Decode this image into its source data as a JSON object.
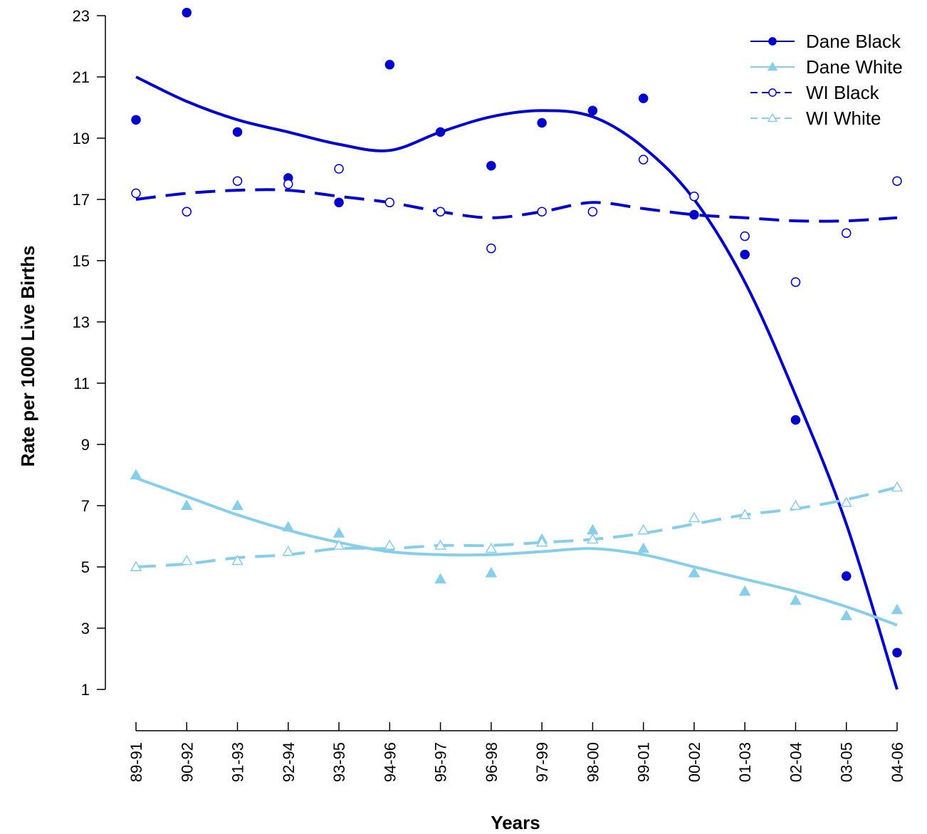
{
  "chart_data": {
    "type": "line",
    "xlabel": "Years",
    "ylabel": "Rate per 1000 Live Births",
    "ylim": [
      1,
      23
    ],
    "yticks": [
      1,
      3,
      5,
      7,
      9,
      11,
      13,
      15,
      17,
      19,
      21,
      23
    ],
    "categories": [
      "89-91",
      "90-92",
      "91-93",
      "92-94",
      "93-95",
      "94-96",
      "95-97",
      "96-98",
      "97-99",
      "98-00",
      "99-01",
      "00-02",
      "01-03",
      "02-04",
      "03-05",
      "04-06"
    ],
    "legend_position": "top-right",
    "series": [
      {
        "name": "Dane Black",
        "color": "#0000cd",
        "marker": "filled-circle",
        "line_style": "solid",
        "points": [
          19.6,
          23.1,
          19.2,
          17.7,
          16.9,
          21.4,
          19.2,
          18.1,
          19.5,
          19.9,
          20.3,
          16.5,
          15.2,
          9.8,
          4.7,
          2.2
        ],
        "trend": [
          21.0,
          20.2,
          19.6,
          19.2,
          18.8,
          18.6,
          19.2,
          19.7,
          19.9,
          19.7,
          18.7,
          17.0,
          14.3,
          10.6,
          6.4,
          1.0
        ]
      },
      {
        "name": "Dane White",
        "color": "#87ceeb",
        "marker": "filled-triangle",
        "line_style": "solid",
        "points": [
          8.0,
          7.0,
          7.0,
          6.3,
          6.1,
          5.6,
          4.6,
          4.8,
          5.9,
          6.2,
          5.6,
          4.8,
          4.2,
          3.9,
          3.4,
          3.6
        ],
        "trend": [
          7.9,
          7.3,
          6.7,
          6.2,
          5.8,
          5.5,
          5.4,
          5.4,
          5.5,
          5.6,
          5.4,
          5.0,
          4.6,
          4.2,
          3.7,
          3.1
        ]
      },
      {
        "name": "WI Black",
        "color": "#0000cd",
        "marker": "open-circle",
        "line_style": "dashed",
        "points": [
          17.2,
          16.6,
          17.6,
          17.5,
          18.0,
          16.9,
          16.6,
          15.4,
          16.6,
          16.6,
          18.3,
          17.1,
          15.8,
          14.3,
          15.9,
          17.6
        ],
        "trend": [
          17.0,
          17.2,
          17.3,
          17.3,
          17.1,
          16.9,
          16.6,
          16.4,
          16.6,
          16.9,
          16.7,
          16.5,
          16.4,
          16.3,
          16.3,
          16.4
        ]
      },
      {
        "name": "WI White",
        "color": "#87ceeb",
        "marker": "open-triangle",
        "line_style": "dashed",
        "points": [
          5.0,
          5.2,
          5.2,
          5.5,
          5.7,
          5.7,
          5.7,
          5.6,
          5.8,
          5.9,
          6.2,
          6.6,
          6.7,
          7.0,
          7.1,
          7.6
        ],
        "trend": [
          5.0,
          5.1,
          5.3,
          5.4,
          5.6,
          5.6,
          5.7,
          5.7,
          5.8,
          5.9,
          6.1,
          6.4,
          6.7,
          6.9,
          7.2,
          7.6
        ]
      }
    ]
  }
}
